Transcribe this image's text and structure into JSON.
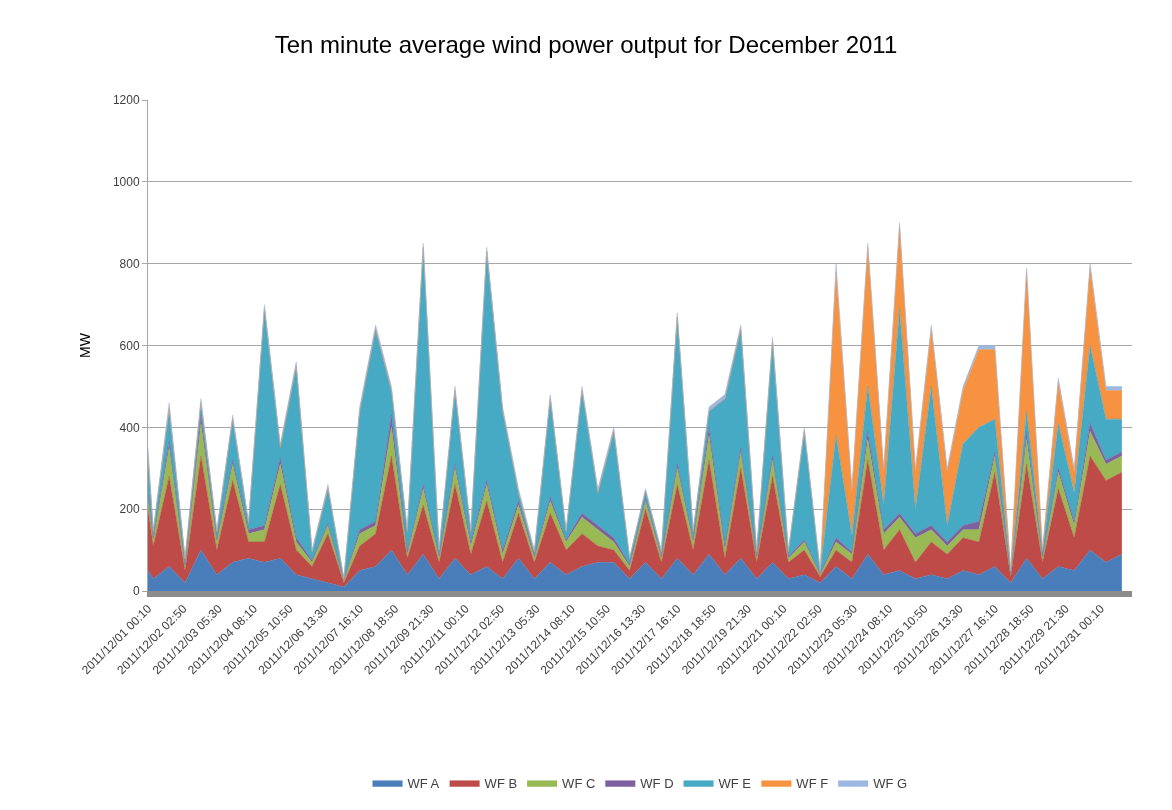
{
  "chart_data": {
    "type": "area",
    "stacked": true,
    "title": "Ten minute average wind power output for December 2011",
    "ylabel": "MW",
    "x": [
      "2011-12-01T00:10",
      "2011-12-01T04:10",
      "2011-12-01T16:10",
      "2011-12-02T04:10",
      "2011-12-02T16:10",
      "2011-12-03T04:10",
      "2011-12-03T16:10",
      "2011-12-04T04:10",
      "2011-12-04T16:10",
      "2011-12-05T04:10",
      "2011-12-05T16:10",
      "2011-12-06T04:10",
      "2011-12-06T16:10",
      "2011-12-07T04:10",
      "2011-12-07T16:10",
      "2011-12-08T04:10",
      "2011-12-08T16:10",
      "2011-12-09T04:10",
      "2011-12-09T16:10",
      "2011-12-10T04:10",
      "2011-12-10T16:10",
      "2011-12-11T04:10",
      "2011-12-11T16:10",
      "2011-12-12T04:10",
      "2011-12-12T16:10",
      "2011-12-13T04:10",
      "2011-12-13T16:10",
      "2011-12-14T04:10",
      "2011-12-14T16:10",
      "2011-12-15T04:10",
      "2011-12-15T16:10",
      "2011-12-16T04:10",
      "2011-12-16T16:10",
      "2011-12-17T04:10",
      "2011-12-17T16:10",
      "2011-12-18T04:10",
      "2011-12-18T16:10",
      "2011-12-19T04:10",
      "2011-12-19T16:10",
      "2011-12-20T04:10",
      "2011-12-20T16:10",
      "2011-12-21T04:10",
      "2011-12-21T16:10",
      "2011-12-22T04:10",
      "2011-12-22T16:10",
      "2011-12-23T04:10",
      "2011-12-23T16:10",
      "2011-12-24T04:10",
      "2011-12-24T16:10",
      "2011-12-25T04:10",
      "2011-12-25T16:10",
      "2011-12-26T04:10",
      "2011-12-26T16:10",
      "2011-12-27T04:10",
      "2011-12-27T16:10",
      "2011-12-28T04:10",
      "2011-12-28T16:10",
      "2011-12-29T04:10",
      "2011-12-29T16:10",
      "2011-12-30T04:10",
      "2011-12-30T16:10",
      "2011-12-31T04:10",
      "2011-12-31T16:10"
    ],
    "series": [
      {
        "name": "WF A",
        "color": "#4a7ebb",
        "values": [
          50,
          30,
          60,
          20,
          100,
          40,
          70,
          80,
          70,
          80,
          40,
          30,
          20,
          10,
          50,
          60,
          100,
          40,
          90,
          30,
          80,
          40,
          60,
          30,
          80,
          30,
          70,
          40,
          60,
          70,
          70,
          30,
          70,
          30,
          80,
          40,
          90,
          40,
          80,
          30,
          70,
          30,
          40,
          20,
          60,
          30,
          90,
          40,
          50,
          30,
          40,
          30,
          50,
          40,
          60,
          20,
          80,
          30,
          60,
          50,
          100,
          70,
          90
        ]
      },
      {
        "name": "WF B",
        "color": "#be4b48",
        "values": [
          150,
          80,
          220,
          30,
          230,
          60,
          200,
          40,
          50,
          180,
          60,
          30,
          120,
          10,
          60,
          80,
          230,
          40,
          120,
          40,
          180,
          50,
          160,
          40,
          110,
          40,
          120,
          60,
          80,
          40,
          30,
          20,
          130,
          40,
          180,
          60,
          230,
          40,
          220,
          40,
          210,
          40,
          60,
          15,
          40,
          40,
          230,
          60,
          100,
          40,
          80,
          60,
          80,
          80,
          230,
          15,
          230,
          40,
          190,
          80,
          230,
          200,
          200
        ]
      },
      {
        "name": "WF C",
        "color": "#98b954",
        "values": [
          30,
          15,
          70,
          10,
          80,
          20,
          40,
          20,
          30,
          50,
          20,
          10,
          20,
          5,
          30,
          20,
          70,
          10,
          40,
          10,
          40,
          20,
          40,
          20,
          20,
          10,
          30,
          20,
          40,
          40,
          20,
          10,
          20,
          10,
          40,
          20,
          60,
          20,
          40,
          10,
          40,
          10,
          20,
          5,
          20,
          20,
          50,
          40,
          30,
          60,
          30,
          20,
          20,
          30,
          40,
          5,
          60,
          10,
          40,
          30,
          60,
          40,
          40
        ]
      },
      {
        "name": "WF D",
        "color": "#7d60a0",
        "values": [
          5,
          5,
          15,
          3,
          20,
          5,
          10,
          10,
          10,
          15,
          10,
          5,
          5,
          2,
          10,
          10,
          30,
          5,
          10,
          5,
          10,
          10,
          10,
          10,
          10,
          5,
          10,
          5,
          10,
          10,
          10,
          5,
          5,
          5,
          10,
          5,
          20,
          10,
          10,
          5,
          10,
          5,
          5,
          2,
          10,
          5,
          20,
          10,
          10,
          10,
          10,
          10,
          10,
          20,
          10,
          2,
          20,
          5,
          10,
          10,
          20,
          10,
          10
        ]
      },
      {
        "name": "WF E",
        "color": "#46aac5",
        "values": [
          90,
          15,
          80,
          15,
          30,
          20,
          100,
          15,
          530,
          25,
          420,
          20,
          85,
          3,
          290,
          470,
          60,
          50,
          580,
          15,
          180,
          25,
          560,
          340,
          20,
          10,
          240,
          20,
          300,
          80,
          260,
          15,
          20,
          10,
          360,
          20,
          40,
          360,
          290,
          10,
          280,
          10,
          265,
          5,
          250,
          40,
          110,
          60,
          500,
          60,
          340,
          40,
          200,
          230,
          80,
          5,
          50,
          10,
          110,
          70,
          190,
          100,
          80
        ]
      },
      {
        "name": "WF F",
        "color": "#f69240",
        "values": [
          0,
          0,
          0,
          0,
          0,
          0,
          0,
          0,
          0,
          0,
          0,
          0,
          0,
          0,
          0,
          0,
          0,
          0,
          0,
          0,
          0,
          0,
          0,
          0,
          0,
          0,
          0,
          0,
          0,
          0,
          0,
          0,
          0,
          0,
          0,
          0,
          0,
          0,
          0,
          0,
          0,
          0,
          0,
          0,
          400,
          110,
          340,
          80,
          200,
          90,
          140,
          130,
          130,
          190,
          170,
          3,
          340,
          5,
          100,
          50,
          190,
          70,
          70
        ]
      },
      {
        "name": "WF G",
        "color": "#9db7e0",
        "values": [
          25,
          5,
          15,
          2,
          10,
          5,
          10,
          5,
          10,
          10,
          10,
          5,
          10,
          0,
          10,
          10,
          10,
          5,
          10,
          0,
          10,
          5,
          10,
          10,
          10,
          5,
          10,
          5,
          10,
          10,
          10,
          0,
          5,
          5,
          10,
          5,
          10,
          10,
          10,
          5,
          10,
          5,
          10,
          3,
          20,
          5,
          10,
          10,
          10,
          10,
          10,
          10,
          10,
          10,
          10,
          0,
          10,
          0,
          10,
          10,
          10,
          10,
          10
        ]
      }
    ],
    "xlim": [
      "2011-12-01T00:10",
      "2011-12-31T23:50"
    ],
    "xticks": [
      {
        "value": "2011-12-01T00:10",
        "label": "2011/12/01 00:10"
      },
      {
        "value": "2011-12-02T02:50",
        "label": "2011/12/02 02:50"
      },
      {
        "value": "2011-12-03T05:30",
        "label": "2011/12/03 05:30"
      },
      {
        "value": "2011-12-04T08:10",
        "label": "2011/12/04 08:10"
      },
      {
        "value": "2011-12-05T10:50",
        "label": "2011/12/05 10:50"
      },
      {
        "value": "2011-12-06T13:30",
        "label": "2011/12/06 13:30"
      },
      {
        "value": "2011-12-07T16:10",
        "label": "2011/12/07 16:10"
      },
      {
        "value": "2011-12-08T18:50",
        "label": "2011/12/08 18:50"
      },
      {
        "value": "2011-12-09T21:30",
        "label": "2011/12/09 21:30"
      },
      {
        "value": "2011-12-11T00:10",
        "label": "2011/12/11 00:10"
      },
      {
        "value": "2011-12-12T02:50",
        "label": "2011/12/12 02:50"
      },
      {
        "value": "2011-12-13T05:30",
        "label": "2011/12/13 05:30"
      },
      {
        "value": "2011-12-14T08:10",
        "label": "2011/12/14 08:10"
      },
      {
        "value": "2011-12-15T10:50",
        "label": "2011/12/15 10:50"
      },
      {
        "value": "2011-12-16T13:30",
        "label": "2011/12/16 13:30"
      },
      {
        "value": "2011-12-17T16:10",
        "label": "2011/12/17 16:10"
      },
      {
        "value": "2011-12-18T18:50",
        "label": "2011/12/18 18:50"
      },
      {
        "value": "2011-12-19T21:30",
        "label": "2011/12/19 21:30"
      },
      {
        "value": "2011-12-21T00:10",
        "label": "2011/12/21 00:10"
      },
      {
        "value": "2011-12-22T02:50",
        "label": "2011/12/22 02:50"
      },
      {
        "value": "2011-12-23T05:30",
        "label": "2011/12/23 05:30"
      },
      {
        "value": "2011-12-24T08:10",
        "label": "2011/12/24 08:10"
      },
      {
        "value": "2011-12-25T10:50",
        "label": "2011/12/25 10:50"
      },
      {
        "value": "2011-12-26T13:30",
        "label": "2011/12/26 13:30"
      },
      {
        "value": "2011-12-27T16:10",
        "label": "2011/12/27 16:10"
      },
      {
        "value": "2011-12-28T18:50",
        "label": "2011/12/28 18:50"
      },
      {
        "value": "2011-12-29T21:30",
        "label": "2011/12/29 21:30"
      },
      {
        "value": "2011-12-31T00:10",
        "label": "2011/12/31 00:10"
      }
    ],
    "ylim": [
      0,
      1200
    ],
    "yticks": [
      0,
      200,
      400,
      600,
      800,
      1000,
      1200
    ],
    "grid": "y",
    "legend": "bottom"
  }
}
